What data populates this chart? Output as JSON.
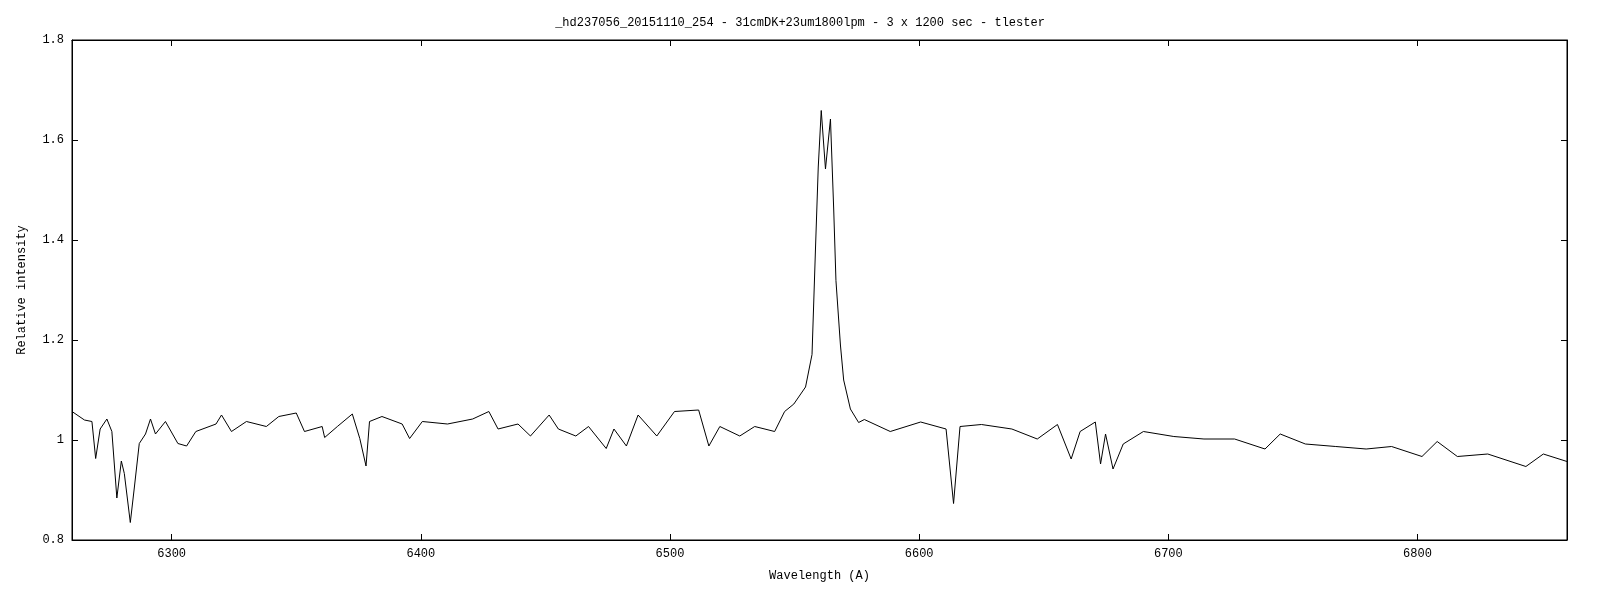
{
  "chart_data": {
    "type": "line",
    "title": "_hd237056_20151110_254 - 31cmDK+23um1800lpm - 3 x 1200 sec - tlester",
    "xlabel": "Wavelength (A)",
    "ylabel": "Relative intensity",
    "xlim": [
      6260,
      6860
    ],
    "xticks": [
      6300,
      6400,
      6500,
      6600,
      6700,
      6800
    ],
    "ylim": [
      0.8,
      1.8
    ],
    "yticks": [
      0.8,
      1,
      1.2,
      1.4,
      1.6,
      1.8
    ],
    "grid": false,
    "marker": "none",
    "line_style": "solid",
    "x": [
      6260,
      6265,
      6268,
      6269.5,
      6271.3,
      6274,
      6276,
      6278,
      6279.8,
      6281,
      6283.4,
      6285,
      6287,
      6289.5,
      6291.5,
      6293.5,
      6297.5,
      6302.5,
      6306,
      6309.7,
      6317.8,
      6320,
      6324,
      6330,
      6338,
      6343,
      6350,
      6353.3,
      6360.4,
      6361.4,
      6366.5,
      6372.5,
      6375.5,
      6378,
      6379.4,
      6384.4,
      6392.5,
      6395.5,
      6400.6,
      6410.7,
      6420.8,
      6427.3,
      6431,
      6439,
      6444,
      6451.5,
      6455.2,
      6462.2,
      6467.3,
      6474.4,
      6477.5,
      6482.5,
      6487.2,
      6494.7,
      6501.8,
      6511.5,
      6515.6,
      6520,
      6528,
      6534,
      6542,
      6546,
      6549.7,
      6554.4,
      6557,
      6558.4,
      6559.5,
      6560.7,
      6562.4,
      6564.4,
      6565.7,
      6566.6,
      6568.4,
      6569.7,
      6572.4,
      6575.7,
      6578,
      6588.4,
      6600.6,
      6610.8,
      6613.8,
      6616.4,
      6625,
      6637.2,
      6647.4,
      6655.5,
      6661,
      6664.6,
      6670.7,
      6672.8,
      6674.8,
      6677.8,
      6681.9,
      6690,
      6702.2,
      6714.3,
      6726.6,
      6738.8,
      6744.9,
      6755,
      6767.2,
      6779.4,
      6789.6,
      6801.8,
      6807.9,
      6816,
      6828.2,
      6843.5,
      6850.5,
      6860
    ],
    "series": [
      {
        "color": "#000000",
        "values": [
          1.057,
          1.04,
          1.037,
          0.963,
          1.022,
          1.042,
          1.017,
          0.884,
          0.958,
          0.933,
          0.835,
          0.904,
          0.993,
          1.012,
          1.042,
          1.012,
          1.037,
          0.993,
          0.988,
          1.017,
          1.032,
          1.05,
          1.017,
          1.037,
          1.027,
          1.047,
          1.054,
          1.017,
          1.027,
          1.005,
          1.027,
          1.052,
          1.003,
          0.948,
          1.037,
          1.047,
          1.032,
          1.003,
          1.037,
          1.032,
          1.042,
          1.057,
          1.022,
          1.032,
          1.008,
          1.05,
          1.022,
          1.008,
          1.027,
          0.983,
          1.022,
          0.988,
          1.05,
          1.008,
          1.057,
          1.06,
          0.988,
          1.027,
          1.008,
          1.027,
          1.017,
          1.057,
          1.072,
          1.106,
          1.171,
          1.384,
          1.546,
          1.659,
          1.542,
          1.642,
          1.462,
          1.319,
          1.19,
          1.12,
          1.062,
          1.035,
          1.041,
          1.017,
          1.036,
          1.022,
          0.873,
          1.027,
          1.031,
          1.022,
          1.002,
          1.031,
          0.962,
          1.017,
          1.036,
          0.952,
          1.012,
          0.942,
          0.992,
          1.017,
          1.007,
          1.002,
          1.002,
          0.982,
          1.012,
          0.992,
          0.987,
          0.982,
          0.987,
          0.967,
          0.997,
          0.967,
          0.972,
          0.947,
          0.972,
          0.957
        ]
      }
    ]
  }
}
